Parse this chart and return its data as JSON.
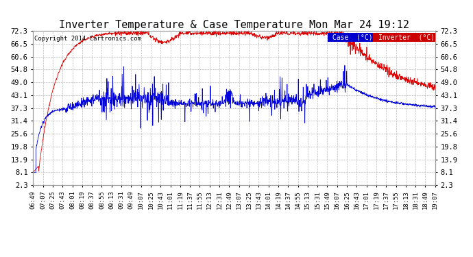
{
  "title": "Inverter Temperature & Case Temperature Mon Mar 24 19:12",
  "copyright": "Copyright 2014 Cartronics.com",
  "yticks": [
    2.3,
    8.1,
    13.9,
    19.8,
    25.6,
    31.4,
    37.3,
    43.1,
    49.0,
    54.8,
    60.6,
    66.5,
    72.3
  ],
  "ylim": [
    2.3,
    72.3
  ],
  "background_color": "#ffffff",
  "grid_color": "#bbbbbb",
  "case_color": "#0000dd",
  "inverter_color": "#dd0000",
  "legend_case_bg": "#0000cc",
  "legend_inverter_bg": "#cc0000",
  "legend_text_color": "#ffffff",
  "title_fontsize": 11,
  "tick_fontsize": 7.5,
  "n_points": 1500,
  "total_minutes": 738
}
